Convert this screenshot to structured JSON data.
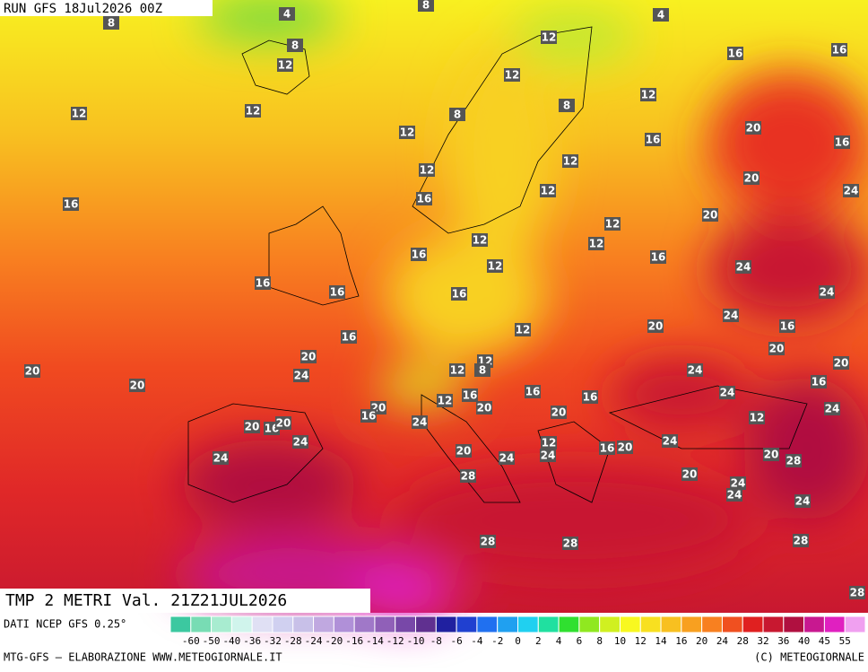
{
  "header": {
    "run": "RUN GFS 18Jul2026 00Z",
    "title": "TMP 2 METRI Val. 21Z21JUL2026"
  },
  "footer": {
    "source": "DATI NCEP GFS 0.25°",
    "credit": "MTG-GFS — ELABORAZIONE WWW.METEOGIORNALE.IT",
    "copyright": "(C) METEOGIORNALE"
  },
  "legend": {
    "labels": [
      -60,
      -50,
      -40,
      -36,
      -32,
      -28,
      -24,
      -20,
      -16,
      -14,
      -12,
      -10,
      -8,
      -6,
      -4,
      -2,
      0,
      2,
      4,
      6,
      8,
      10,
      12,
      14,
      16,
      20,
      24,
      28,
      32,
      36,
      40,
      45,
      55
    ],
    "colors": [
      "#3cc8a0",
      "#78dcb4",
      "#a8ecd0",
      "#d0f4ec",
      "#e0e0f4",
      "#d0d0f0",
      "#c8c0e8",
      "#c0a8e0",
      "#b090d8",
      "#a078c8",
      "#9060b8",
      "#7848a8",
      "#603090",
      "#2020a0",
      "#2040d0",
      "#2070f0",
      "#20a0f0",
      "#20d0f0",
      "#20e0a0",
      "#30e030",
      "#90e820",
      "#d0f020",
      "#f8f820",
      "#f8e020",
      "#f8c020",
      "#f8a020",
      "#f88020",
      "#f05020",
      "#e02020",
      "#c81830",
      "#b01040",
      "#c81890",
      "#e020c0",
      "#f0a0f0"
    ]
  },
  "contour_labels": [
    4,
    8,
    8,
    4,
    8,
    12,
    12,
    12,
    16,
    16,
    12,
    12,
    8,
    8,
    12,
    12,
    16,
    20,
    16,
    12,
    12,
    20,
    24,
    16,
    16,
    12,
    20,
    12,
    12,
    12,
    16,
    12,
    16,
    24,
    16,
    16,
    16,
    24,
    24,
    20,
    12,
    16,
    16,
    20,
    12,
    20,
    20,
    24,
    12,
    8,
    24,
    20,
    20,
    16,
    16,
    12,
    16,
    16,
    24,
    20,
    16,
    20,
    20,
    24,
    12,
    24,
    20,
    16,
    20,
    24,
    12,
    24,
    16,
    20,
    24,
    20,
    24,
    20,
    24,
    28,
    28,
    20,
    24,
    24,
    24,
    28,
    28,
    28,
    28
  ]
}
